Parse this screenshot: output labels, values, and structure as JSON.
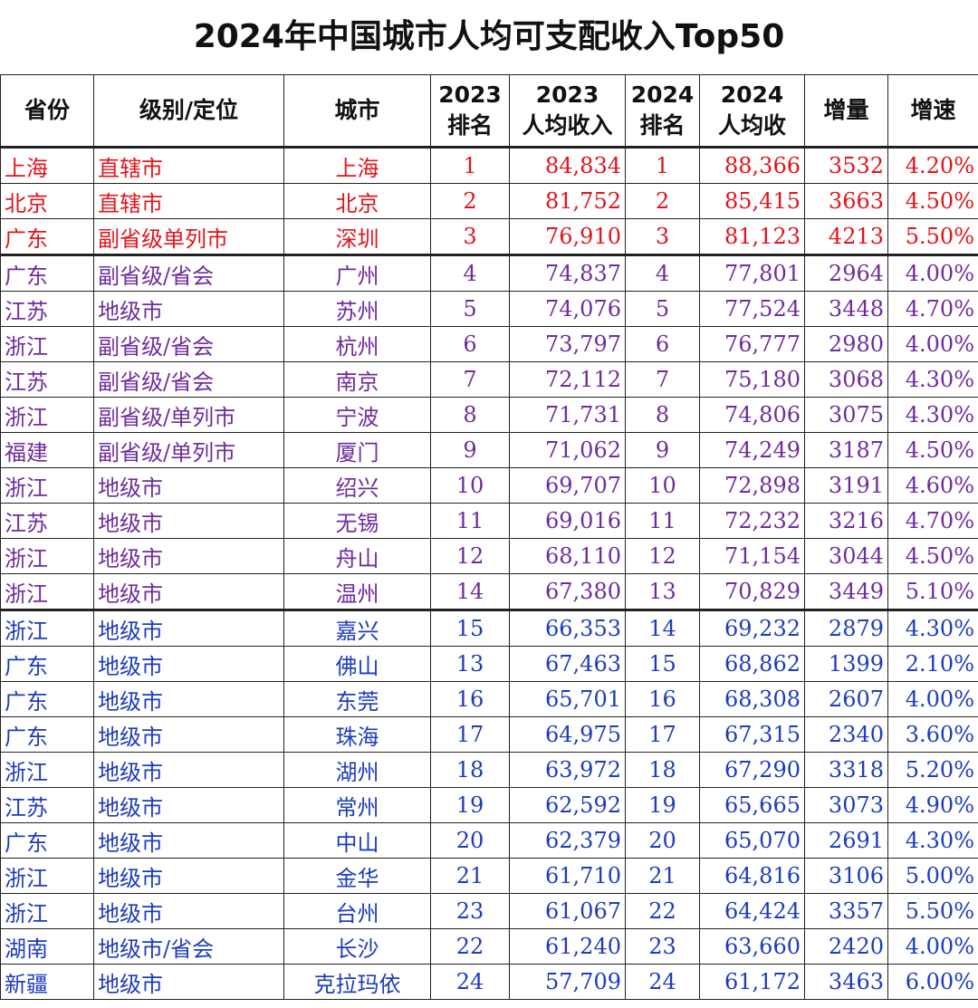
{
  "title": "2024年中国城市人均可支配收入Top50",
  "table": {
    "header": [
      [
        "省份"
      ],
      [
        "级别/定位"
      ],
      [
        "城市"
      ],
      [
        "2023",
        "排名"
      ],
      [
        "2023",
        "人均收入"
      ],
      [
        "2024",
        "排名"
      ],
      [
        "2024",
        "人均收"
      ],
      [
        "增量"
      ],
      [
        "增速"
      ]
    ],
    "groups": [
      {
        "color": "#e3141b",
        "rows": [
          [
            "上海",
            "直辖市",
            "上海",
            "1",
            "84,834",
            "1",
            "88,366",
            "3532",
            "4.20%"
          ],
          [
            "北京",
            "直辖市",
            "北京",
            "2",
            "81,752",
            "2",
            "85,415",
            "3663",
            "4.50%"
          ],
          [
            "广东",
            "副省级单列市",
            "深圳",
            "3",
            "76,910",
            "3",
            "81,123",
            "4213",
            "5.50%"
          ]
        ]
      },
      {
        "color": "#6f2c9e",
        "rows": [
          [
            "广东",
            "副省级/省会",
            "广州",
            "4",
            "74,837",
            "4",
            "77,801",
            "2964",
            "4.00%"
          ],
          [
            "江苏",
            "地级市",
            "苏州",
            "5",
            "74,076",
            "5",
            "77,524",
            "3448",
            "4.70%"
          ],
          [
            "浙江",
            "副省级/省会",
            "杭州",
            "6",
            "73,797",
            "6",
            "76,777",
            "2980",
            "4.00%"
          ],
          [
            "江苏",
            "副省级/省会",
            "南京",
            "7",
            "72,112",
            "7",
            "75,180",
            "3068",
            "4.30%"
          ],
          [
            "浙江",
            "副省级/单列市",
            "宁波",
            "8",
            "71,731",
            "8",
            "74,806",
            "3075",
            "4.30%"
          ],
          [
            "福建",
            "副省级/单列市",
            "厦门",
            "9",
            "71,062",
            "9",
            "74,249",
            "3187",
            "4.50%"
          ],
          [
            "浙江",
            "地级市",
            "绍兴",
            "10",
            "69,707",
            "10",
            "72,898",
            "3191",
            "4.60%"
          ],
          [
            "江苏",
            "地级市",
            "无锡",
            "11",
            "69,016",
            "11",
            "72,232",
            "3216",
            "4.70%"
          ],
          [
            "浙江",
            "地级市",
            "舟山",
            "12",
            "68,110",
            "12",
            "71,154",
            "3044",
            "4.50%"
          ],
          [
            "浙江",
            "地级市",
            "温州",
            "14",
            "67,380",
            "13",
            "70,829",
            "3449",
            "5.10%"
          ]
        ]
      },
      {
        "color": "#1d3cbd",
        "rows": [
          [
            "浙江",
            "地级市",
            "嘉兴",
            "15",
            "66,353",
            "14",
            "69,232",
            "2879",
            "4.30%"
          ],
          [
            "广东",
            "地级市",
            "佛山",
            "13",
            "67,463",
            "15",
            "68,862",
            "1399",
            "2.10%"
          ],
          [
            "广东",
            "地级市",
            "东莞",
            "16",
            "65,701",
            "16",
            "68,308",
            "2607",
            "4.00%"
          ],
          [
            "广东",
            "地级市",
            "珠海",
            "17",
            "64,975",
            "17",
            "67,315",
            "2340",
            "3.60%"
          ],
          [
            "浙江",
            "地级市",
            "湖州",
            "18",
            "63,972",
            "18",
            "67,290",
            "3318",
            "5.20%"
          ],
          [
            "江苏",
            "地级市",
            "常州",
            "19",
            "62,592",
            "19",
            "65,665",
            "3073",
            "4.90%"
          ],
          [
            "广东",
            "地级市",
            "中山",
            "20",
            "62,379",
            "20",
            "65,070",
            "2691",
            "4.30%"
          ],
          [
            "浙江",
            "地级市",
            "金华",
            "21",
            "61,710",
            "21",
            "64,816",
            "3106",
            "5.00%"
          ],
          [
            "浙江",
            "地级市",
            "台州",
            "23",
            "61,067",
            "22",
            "64,424",
            "3357",
            "5.50%"
          ],
          [
            "湖南",
            "地级市/省会",
            "长沙",
            "22",
            "61,240",
            "23",
            "63,660",
            "2420",
            "4.00%"
          ],
          [
            "新疆",
            "地级市",
            "克拉玛依",
            "24",
            "57,709",
            "24",
            "61,172",
            "3463",
            "6.00%"
          ]
        ]
      }
    ]
  }
}
